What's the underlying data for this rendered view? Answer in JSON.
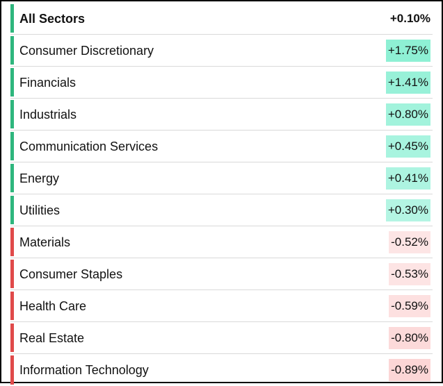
{
  "colors": {
    "up_bar": "#2eb67d",
    "down_bar": "#e04a4a",
    "pos_fills": [
      "#8ef0d4",
      "#98f1d8",
      "#a2f3dc",
      "#a8f4df",
      "#adf4e1",
      "#b4f5e3"
    ],
    "neg_fills": [
      "#fde5e5",
      "#fde4e4",
      "#fde0e0",
      "#fcdada",
      "#fcd6d6"
    ]
  },
  "sectors": [
    {
      "name": "All Sectors",
      "change": "+0.10%",
      "direction": "up"
    },
    {
      "name": "Consumer Discretionary",
      "change": "+1.75%",
      "direction": "up"
    },
    {
      "name": "Financials",
      "change": "+1.41%",
      "direction": "up"
    },
    {
      "name": "Industrials",
      "change": "+0.80%",
      "direction": "up"
    },
    {
      "name": "Communication Services",
      "change": "+0.45%",
      "direction": "up"
    },
    {
      "name": "Energy",
      "change": "+0.41%",
      "direction": "up"
    },
    {
      "name": "Utilities",
      "change": "+0.30%",
      "direction": "up"
    },
    {
      "name": "Materials",
      "change": "-0.52%",
      "direction": "down"
    },
    {
      "name": "Consumer Staples",
      "change": "-0.53%",
      "direction": "down"
    },
    {
      "name": "Health Care",
      "change": "-0.59%",
      "direction": "down"
    },
    {
      "name": "Real Estate",
      "change": "-0.80%",
      "direction": "down"
    },
    {
      "name": "Information Technology",
      "change": "-0.89%",
      "direction": "down"
    }
  ]
}
